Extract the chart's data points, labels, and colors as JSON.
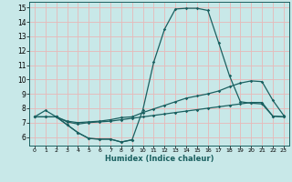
{
  "xlabel": "Humidex (Indice chaleur)",
  "xlim": [
    -0.5,
    23.5
  ],
  "ylim": [
    5.4,
    15.4
  ],
  "yticks": [
    6,
    7,
    8,
    9,
    10,
    11,
    12,
    13,
    14,
    15
  ],
  "xticks": [
    0,
    1,
    2,
    3,
    4,
    5,
    6,
    7,
    8,
    9,
    10,
    11,
    12,
    13,
    14,
    15,
    16,
    17,
    18,
    19,
    20,
    21,
    22,
    23
  ],
  "bg_color": "#c8e8e8",
  "grid_color": "#e8b8b8",
  "line_color": "#1a6060",
  "line1_x": [
    0,
    1,
    2,
    3,
    4,
    5,
    6,
    7,
    8,
    9,
    10,
    11,
    12,
    13,
    14,
    15,
    16,
    17,
    18,
    19,
    20,
    21,
    22,
    23
  ],
  "line1_y": [
    7.4,
    7.85,
    7.4,
    6.85,
    6.3,
    5.9,
    5.85,
    5.85,
    5.65,
    5.8,
    7.9,
    11.2,
    13.5,
    14.9,
    14.95,
    14.95,
    14.8,
    12.55,
    10.25,
    8.45,
    8.35,
    8.3,
    7.45,
    7.4
  ],
  "line2_x": [
    0,
    1,
    2,
    3,
    4,
    5,
    6,
    7,
    8,
    9,
    10,
    11,
    12,
    13,
    14,
    15,
    16,
    17,
    18,
    19,
    20,
    21,
    22,
    23
  ],
  "line2_y": [
    7.4,
    7.4,
    7.4,
    7.1,
    7.0,
    7.05,
    7.1,
    7.2,
    7.35,
    7.4,
    7.7,
    7.95,
    8.2,
    8.45,
    8.7,
    8.85,
    9.0,
    9.2,
    9.5,
    9.75,
    9.9,
    9.85,
    8.55,
    7.5
  ],
  "line3_x": [
    0,
    1,
    2,
    3,
    4,
    5,
    6,
    7,
    8,
    9,
    10,
    11,
    12,
    13,
    14,
    15,
    16,
    17,
    18,
    19,
    20,
    21,
    22,
    23
  ],
  "line3_y": [
    7.4,
    7.4,
    7.4,
    7.05,
    6.9,
    7.0,
    7.05,
    7.1,
    7.2,
    7.3,
    7.4,
    7.5,
    7.6,
    7.7,
    7.8,
    7.9,
    8.0,
    8.1,
    8.2,
    8.3,
    8.4,
    8.4,
    7.45,
    7.4
  ],
  "line4_x": [
    2,
    3,
    4,
    5,
    6,
    7,
    8,
    9
  ],
  "line4_y": [
    7.4,
    6.85,
    6.3,
    5.9,
    5.85,
    5.85,
    5.65,
    5.8
  ]
}
